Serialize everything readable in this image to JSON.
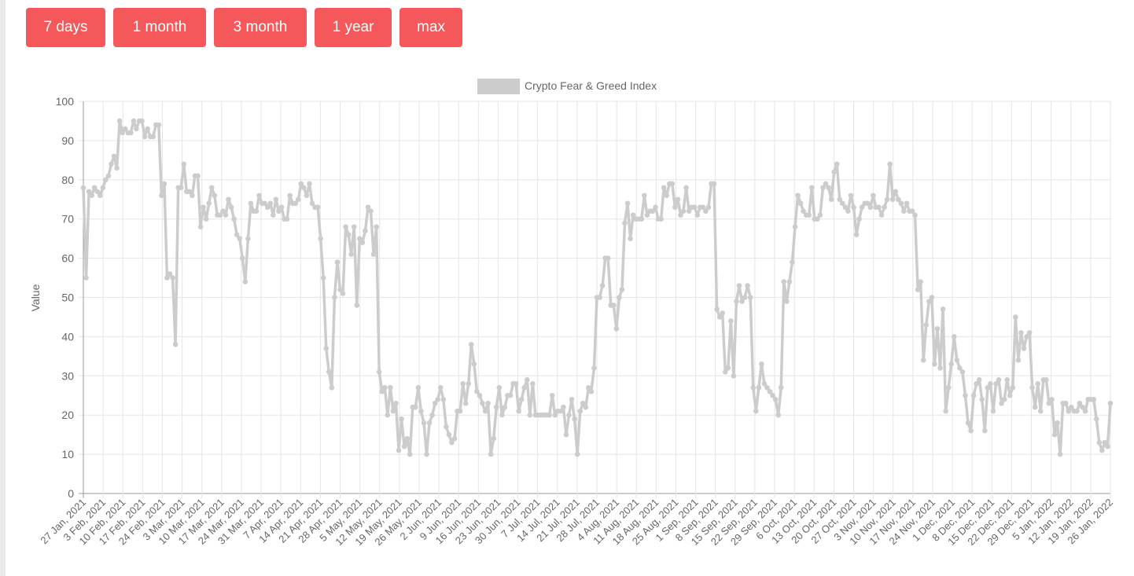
{
  "range_buttons": [
    {
      "label": "7 days"
    },
    {
      "label": "1 month"
    },
    {
      "label": "3 month"
    },
    {
      "label": "1 year"
    },
    {
      "label": "max"
    }
  ],
  "colors": {
    "button_bg": "#f5585b",
    "series": "#cccccc",
    "grid": "#e5e5e5",
    "axis": "#999999",
    "text": "#666666"
  },
  "chart_data": {
    "type": "line",
    "title": "",
    "xlabel": "",
    "ylabel": "Value",
    "ylim": [
      0,
      100
    ],
    "y_ticks": [
      0,
      10,
      20,
      30,
      40,
      50,
      60,
      70,
      80,
      90,
      100
    ],
    "grid": true,
    "legend_position": "top-center",
    "x_start": "2021-01-27",
    "x_end": "2022-01-26",
    "x_tick_labels": [
      "27 Jan, 2021",
      "3 Feb, 2021",
      "10 Feb, 2021",
      "17 Feb, 2021",
      "24 Feb, 2021",
      "3 Mar, 2021",
      "10 Mar, 2021",
      "17 Mar, 2021",
      "24 Mar, 2021",
      "31 Mar, 2021",
      "7 Apr, 2021",
      "14 Apr, 2021",
      "21 Apr, 2021",
      "28 Apr, 2021",
      "5 May, 2021",
      "12 May, 2021",
      "19 May, 2021",
      "26 May, 2021",
      "2 Jun, 2021",
      "9 Jun, 2021",
      "16 Jun, 2021",
      "23 Jun, 2021",
      "30 Jun, 2021",
      "7 Jul, 2021",
      "14 Jul, 2021",
      "21 Jul, 2021",
      "28 Jul, 2021",
      "4 Aug, 2021",
      "11 Aug, 2021",
      "18 Aug, 2021",
      "25 Aug, 2021",
      "1 Sep, 2021",
      "8 Sep, 2021",
      "15 Sep, 2021",
      "22 Sep, 2021",
      "29 Sep, 2021",
      "6 Oct, 2021",
      "13 Oct, 2021",
      "20 Oct, 2021",
      "27 Oct, 2021",
      "3 Nov, 2021",
      "10 Nov, 2021",
      "17 Nov, 2021",
      "24 Nov, 2021",
      "1 Dec, 2021",
      "8 Dec, 2021",
      "15 Dec, 2021",
      "22 Dec, 2021",
      "29 Dec, 2021",
      "5 Jan, 2022",
      "12 Jan, 2022",
      "19 Jan, 2022",
      "26 Jan, 2022"
    ],
    "series": [
      {
        "name": "Crypto Fear & Greed Index",
        "color": "#cccccc",
        "values": [
          78,
          55,
          77,
          76,
          78,
          77,
          76,
          78,
          80,
          81,
          84,
          86,
          83,
          95,
          92,
          93,
          92,
          92,
          95,
          93,
          95,
          95,
          91,
          93,
          91,
          91,
          94,
          94,
          76,
          79,
          55,
          56,
          55,
          38,
          78,
          78,
          84,
          77,
          77,
          76,
          81,
          81,
          68,
          73,
          70,
          74,
          78,
          76,
          71,
          71,
          72,
          71,
          75,
          73,
          70,
          66,
          65,
          60,
          54,
          65,
          74,
          72,
          72,
          76,
          74,
          74,
          73,
          74,
          71,
          75,
          72,
          73,
          70,
          70,
          76,
          74,
          74,
          75,
          79,
          78,
          76,
          79,
          74,
          73,
          73,
          65,
          55,
          37,
          31,
          27,
          50,
          59,
          52,
          51,
          68,
          66,
          61,
          68,
          48,
          65,
          64,
          67,
          73,
          72,
          61,
          68,
          31,
          26,
          27,
          20,
          27,
          21,
          23,
          11,
          19,
          12,
          14,
          10,
          22,
          22,
          27,
          21,
          18,
          10,
          18,
          20,
          23,
          24,
          27,
          24,
          17,
          15,
          13,
          14,
          21,
          21,
          28,
          23,
          28,
          38,
          33,
          26,
          25,
          23,
          21,
          23,
          10,
          14,
          22,
          27,
          20,
          22,
          25,
          25,
          28,
          28,
          21,
          24,
          27,
          29,
          20,
          28,
          20,
          20,
          20,
          20,
          20,
          20,
          25,
          20,
          21,
          21,
          22,
          15,
          20,
          24,
          19,
          10,
          21,
          23,
          22,
          27,
          26,
          32,
          50,
          50,
          53,
          60,
          60,
          48,
          48,
          42,
          50,
          52,
          69,
          74,
          65,
          71,
          70,
          70,
          70,
          76,
          71,
          72,
          72,
          73,
          70,
          70,
          78,
          76,
          79,
          79,
          73,
          75,
          71,
          72,
          78,
          72,
          73,
          73,
          71,
          73,
          73,
          72,
          73,
          79,
          79,
          47,
          45,
          46,
          31,
          32,
          44,
          30,
          49,
          53,
          49,
          50,
          53,
          50,
          27,
          21,
          27,
          33,
          28,
          27,
          26,
          25,
          24,
          20,
          27,
          54,
          49,
          54,
          59,
          68,
          76,
          74,
          72,
          71,
          71,
          78,
          70,
          70,
          71,
          78,
          79,
          78,
          75,
          82,
          84,
          75,
          74,
          73,
          72,
          76,
          73,
          66,
          70,
          73,
          74,
          74,
          73,
          76,
          73,
          73,
          71,
          73,
          75,
          84,
          75,
          77,
          75,
          74,
          72,
          74,
          72,
          72,
          71,
          52,
          54,
          34,
          43,
          49,
          50,
          33,
          42,
          32,
          47,
          21,
          27,
          33,
          40,
          34,
          32,
          31,
          25,
          18,
          16,
          25,
          28,
          29,
          24,
          16,
          27,
          28,
          21,
          28,
          29,
          23,
          24,
          29,
          25,
          27,
          45,
          34,
          41,
          37,
          40,
          41,
          27,
          22,
          28,
          21,
          29,
          29,
          23,
          24,
          15,
          18,
          10,
          23,
          23,
          21,
          22,
          21,
          21,
          23,
          22,
          21,
          24,
          24,
          24,
          19,
          13,
          11,
          13,
          12,
          23
        ]
      }
    ]
  }
}
